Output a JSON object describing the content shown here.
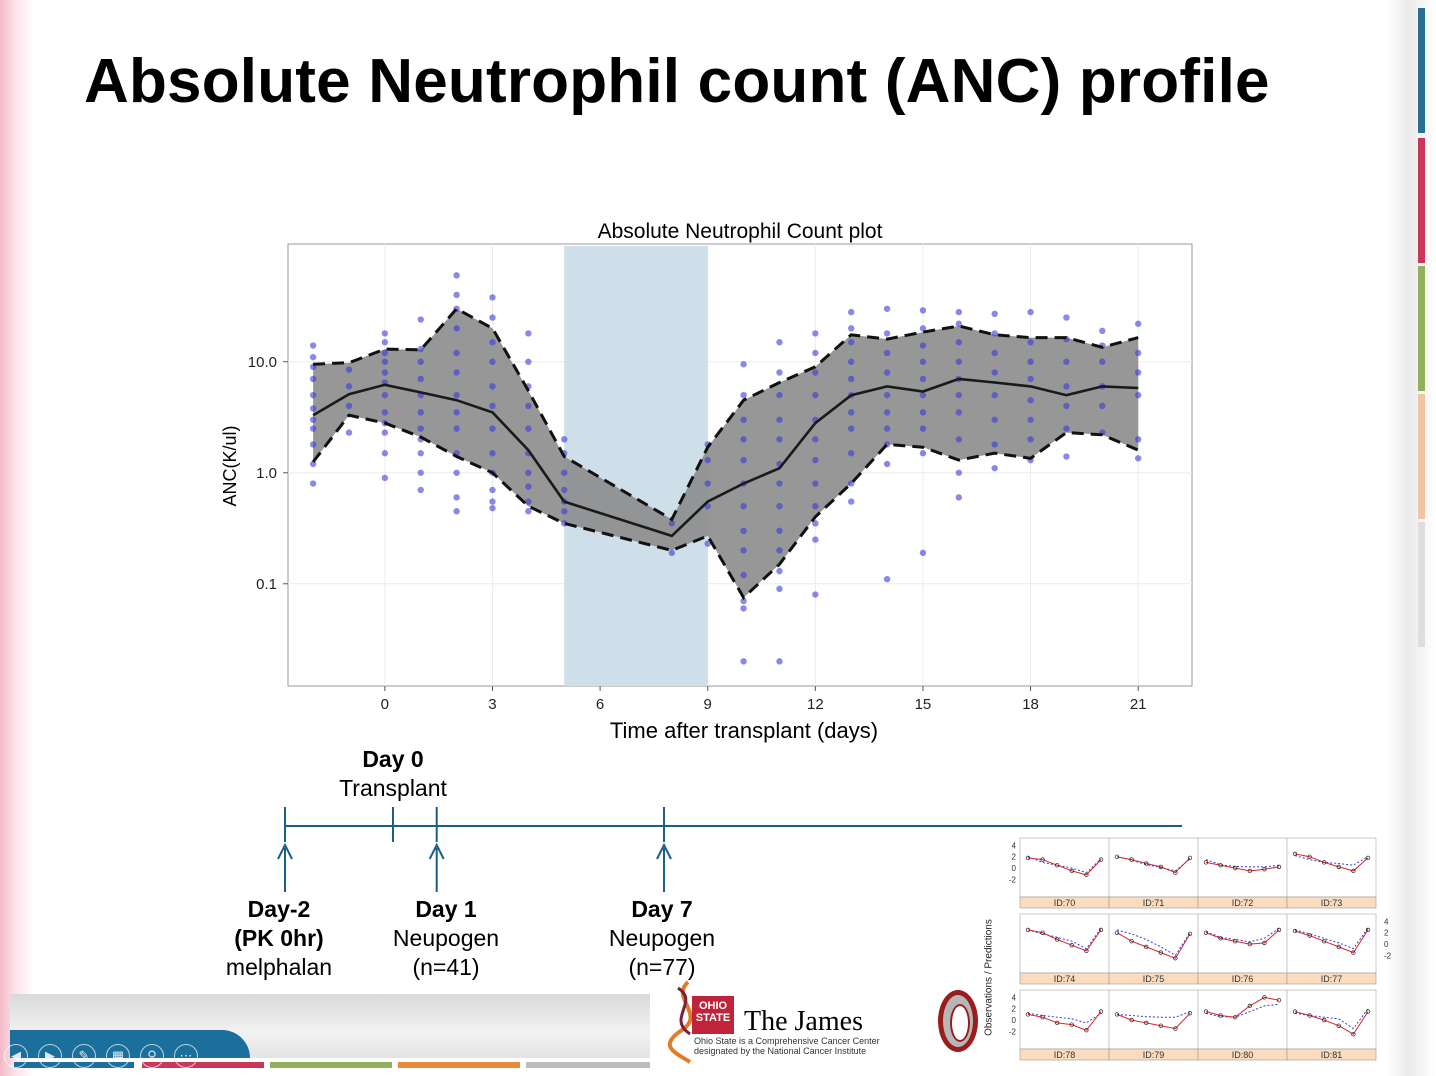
{
  "slide": {
    "title": "Absolute Neutrophil count (ANC) profile"
  },
  "colors": {
    "band": "#8c8c8c",
    "highlight": "#cfdfe9",
    "points": "#3b3bdb",
    "median": "#1a1a1a",
    "timeline": "#1b5f86"
  },
  "chart_data": [
    {
      "type": "scatter",
      "title": "Absolute Neutrophil Count plot",
      "xlabel": "Time after transplant (days)",
      "ylabel": "ANC(K/ul)",
      "y_scale": "log",
      "xlim": [
        -2.7,
        22.5
      ],
      "ylim": [
        0.012,
        115
      ],
      "xticks": [
        0,
        3,
        6,
        9,
        12,
        15,
        18,
        21
      ],
      "yticks": [
        0.1,
        1.0,
        10.0
      ],
      "ytick_labels": [
        "0.1",
        "1.0",
        "10.0"
      ],
      "grid": true,
      "highlight_x_range": [
        5,
        9
      ],
      "series": [
        {
          "role": "median",
          "x": [
            -2,
            -1,
            0,
            1,
            2,
            3,
            4,
            5,
            8,
            9,
            10,
            11,
            12,
            13,
            14,
            15,
            16,
            17,
            18,
            19,
            20,
            21
          ],
          "values": [
            3.3,
            5.1,
            6.2,
            5.3,
            4.5,
            3.5,
            1.6,
            0.55,
            0.27,
            0.55,
            0.8,
            1.1,
            2.8,
            5.0,
            6.0,
            5.4,
            7.0,
            6.5,
            6.0,
            5.0,
            6.0,
            5.8
          ]
        },
        {
          "role": "upper-bound",
          "x": [
            -2,
            -1,
            0,
            1,
            2,
            3,
            4,
            5,
            8,
            9,
            10,
            11,
            12,
            13,
            14,
            15,
            16,
            17,
            18,
            19,
            20,
            21
          ],
          "values": [
            9.5,
            9.8,
            13.0,
            12.8,
            30.0,
            20.0,
            5.5,
            1.4,
            0.38,
            1.7,
            4.5,
            6.5,
            9.0,
            17.5,
            16.0,
            18.5,
            21.0,
            17.5,
            16.5,
            16.5,
            13.5,
            16.5
          ]
        },
        {
          "role": "lower-bound",
          "x": [
            -2,
            -1,
            0,
            1,
            2,
            3,
            4,
            5,
            8,
            9,
            10,
            11,
            12,
            13,
            14,
            15,
            16,
            17,
            18,
            19,
            20,
            21
          ],
          "values": [
            1.25,
            3.3,
            2.8,
            2.1,
            1.4,
            1.0,
            0.5,
            0.35,
            0.2,
            0.27,
            0.075,
            0.15,
            0.4,
            0.8,
            1.8,
            1.7,
            1.3,
            1.5,
            1.35,
            2.3,
            2.2,
            1.6
          ]
        },
        {
          "role": "observations",
          "x": [
            -2,
            -2,
            -2,
            -2,
            -2,
            -2,
            -2,
            -2,
            -2,
            -2,
            -2,
            -1,
            -1,
            -1,
            -1,
            0,
            0,
            0,
            0,
            0,
            0,
            0,
            0,
            0,
            0,
            0,
            0,
            1,
            1,
            1,
            1,
            1,
            1,
            1,
            1,
            1,
            1,
            1,
            2,
            2,
            2,
            2,
            2,
            2,
            2,
            2,
            2,
            2,
            2,
            2,
            2,
            3,
            3,
            3,
            3,
            3,
            3,
            3,
            3,
            3,
            3,
            3,
            3,
            4,
            4,
            4,
            4,
            4,
            4,
            4,
            4,
            4,
            4,
            5,
            5,
            5,
            5,
            5,
            5,
            5,
            8,
            8,
            9,
            9,
            9,
            9,
            9,
            10,
            10,
            10,
            10,
            10,
            10,
            10,
            10,
            10,
            10,
            10,
            10,
            10,
            11,
            11,
            11,
            11,
            11,
            11,
            11,
            11,
            11,
            11,
            11,
            11,
            11,
            12,
            12,
            12,
            12,
            12,
            12,
            12,
            12,
            12,
            12,
            12,
            12,
            13,
            13,
            13,
            13,
            13,
            13,
            13,
            13,
            13,
            13,
            13,
            14,
            14,
            14,
            14,
            14,
            14,
            14,
            14,
            14,
            14,
            15,
            15,
            15,
            15,
            15,
            15,
            15,
            15,
            15,
            15,
            16,
            16,
            16,
            16,
            16,
            16,
            16,
            16,
            16,
            16,
            17,
            17,
            17,
            17,
            17,
            17,
            17,
            17,
            18,
            18,
            18,
            18,
            18,
            18,
            18,
            18,
            19,
            19,
            19,
            19,
            19,
            19,
            19,
            20,
            20,
            20,
            20,
            20,
            20,
            21,
            21,
            21,
            21,
            21,
            21
          ],
          "values": [
            14,
            11,
            9,
            7,
            5,
            3.8,
            3,
            2.5,
            1.8,
            1.2,
            0.8,
            8.5,
            6,
            4,
            2.3,
            18,
            15,
            12,
            10,
            8,
            6.5,
            5,
            3.5,
            2.8,
            2.3,
            1.5,
            0.9,
            24,
            13,
            10,
            7,
            5,
            3.5,
            2.5,
            2,
            1.5,
            1,
            0.7,
            60,
            40,
            30,
            20,
            12,
            8,
            5,
            3.5,
            2.5,
            1.5,
            1,
            0.6,
            0.45,
            38,
            25,
            15,
            10,
            6,
            4,
            2.5,
            1.5,
            1,
            0.7,
            0.55,
            0.48,
            18,
            10,
            6,
            4,
            2.5,
            1.5,
            1,
            0.75,
            0.55,
            0.45,
            2,
            1.5,
            1,
            0.7,
            0.55,
            0.45,
            0.35,
            0.35,
            0.19,
            1.8,
            1.3,
            0.8,
            0.5,
            0.23,
            9.5,
            5,
            3,
            2,
            1.3,
            0.8,
            0.5,
            0.3,
            0.2,
            0.12,
            0.07,
            0.06,
            0.02,
            15,
            8,
            5,
            3,
            2,
            1.2,
            0.8,
            0.5,
            0.3,
            0.2,
            0.13,
            0.09,
            0.02,
            18,
            12,
            8,
            5,
            3,
            2,
            1.3,
            0.8,
            0.5,
            0.35,
            0.25,
            0.08,
            28,
            20,
            15,
            10,
            7,
            5,
            3.5,
            2.5,
            1.5,
            0.8,
            0.55,
            30,
            18,
            12,
            8,
            5,
            3.5,
            2.5,
            1.8,
            1.2,
            0.11,
            29,
            20,
            14,
            10,
            7,
            5,
            3.5,
            2.5,
            1.5,
            0.19,
            28,
            22,
            15,
            10,
            7,
            5,
            3.5,
            2,
            1,
            0.6,
            27,
            18,
            12,
            8,
            5,
            3,
            1.8,
            1.1,
            28,
            15,
            10,
            7,
            4.5,
            3,
            2,
            1.3,
            25,
            16,
            10,
            6,
            4,
            2.5,
            1.4,
            19,
            14,
            10,
            6,
            4,
            2.3,
            22,
            12,
            8,
            5,
            2,
            1.35
          ]
        }
      ]
    },
    {
      "type": "timeline",
      "items": [
        {
          "day": -2,
          "bold": [
            "Day-2",
            "(PK 0hr)"
          ],
          "text": [
            "melphalan"
          ]
        },
        {
          "day": 0,
          "bold": [
            "Day 0"
          ],
          "text": [
            "Transplant"
          ]
        },
        {
          "day": 1,
          "bold": [
            "Day 1"
          ],
          "text": [
            "Neupogen",
            "(n=41)"
          ]
        },
        {
          "day": 7,
          "bold": [
            "Day 7"
          ],
          "text": [
            "Neupogen",
            "(n=77)"
          ]
        }
      ]
    },
    {
      "type": "line",
      "panel_grid": true,
      "ylabel": "Observations / Predictions",
      "yticks": [
        -2,
        0,
        2,
        4
      ],
      "panels": [
        {
          "id": "ID:70",
          "obs": [
            1.8,
            1.5,
            0.5,
            -0.5,
            -1.2,
            1.5
          ],
          "pred": [
            2,
            1,
            0.5,
            0,
            -0.8,
            1.6
          ]
        },
        {
          "id": "ID:71",
          "obs": [
            2,
            1.5,
            0.8,
            0.2,
            -0.8,
            1.8
          ],
          "pred": [
            2,
            1.4,
            0.6,
            0.1,
            -0.5,
            1.6
          ]
        },
        {
          "id": "ID:72",
          "obs": [
            1,
            0.5,
            0,
            -0.5,
            -0.2,
            0.2
          ],
          "pred": [
            1.5,
            0.6,
            0.3,
            0.2,
            0.2,
            0.5
          ]
        },
        {
          "id": "ID:73",
          "obs": [
            2.5,
            2,
            1,
            0.2,
            -0.5,
            1.8
          ],
          "pred": [
            2.2,
            1.5,
            1,
            0.8,
            0.5,
            2
          ]
        },
        {
          "id": "ID:74",
          "obs": [
            2.5,
            2,
            0.8,
            -0.2,
            -1.2,
            2.5
          ],
          "pred": [
            2.5,
            1.8,
            1.2,
            0.5,
            -0.8,
            2.8
          ]
        },
        {
          "id": "ID:75",
          "obs": [
            2,
            0.5,
            -0.5,
            -1.5,
            -2.5,
            1.8
          ],
          "pred": [
            2.5,
            1.8,
            0.8,
            -0.5,
            -2,
            2
          ]
        },
        {
          "id": "ID:76",
          "obs": [
            2,
            1,
            0.5,
            0,
            0.2,
            2.5
          ],
          "pred": [
            2.2,
            1.2,
            0.8,
            0.4,
            1,
            2.8
          ]
        },
        {
          "id": "ID:77",
          "obs": [
            2.3,
            1.5,
            0.5,
            -0.5,
            -1.5,
            2.5
          ],
          "pred": [
            2.5,
            1.8,
            1,
            0.2,
            -0.8,
            2.8
          ]
        },
        {
          "id": "ID:78",
          "obs": [
            1,
            0.5,
            -0.5,
            -0.8,
            -1.8,
            1.5
          ],
          "pred": [
            1.2,
            0.8,
            0.5,
            0.2,
            -0.5,
            1.2
          ]
        },
        {
          "id": "ID:79",
          "obs": [
            1,
            0,
            -0.5,
            -1,
            -1.5,
            1.2
          ],
          "pred": [
            1,
            0.8,
            0.6,
            0.5,
            0.5,
            1.5
          ]
        },
        {
          "id": "ID:80",
          "obs": [
            1.5,
            0.8,
            0.5,
            2.5,
            4,
            3.5
          ],
          "pred": [
            1.2,
            0.6,
            0.5,
            1.5,
            2.5,
            2.8
          ]
        },
        {
          "id": "ID:81",
          "obs": [
            1.5,
            0.8,
            0,
            -1,
            -2.5,
            1.5
          ],
          "pred": [
            1.2,
            0.8,
            0.5,
            0.2,
            -1.5,
            2
          ]
        }
      ]
    }
  ],
  "sponsor": {
    "james_name": "The James",
    "james_mark": "OHIO STATE",
    "james_tagline": [
      "Ohio State is a Comprehensive Cancer Center",
      "designated by the National Cancer Institute"
    ]
  }
}
